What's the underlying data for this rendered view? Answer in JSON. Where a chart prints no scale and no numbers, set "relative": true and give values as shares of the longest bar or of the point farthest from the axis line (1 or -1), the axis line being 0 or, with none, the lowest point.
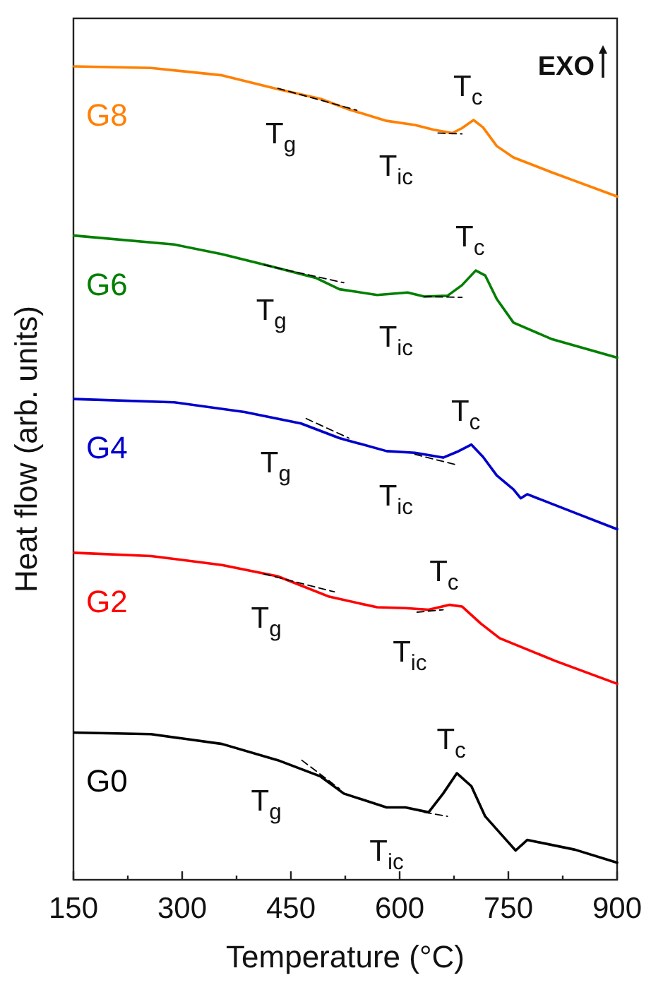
{
  "chart_data": {
    "type": "line",
    "relative": true,
    "xlabel": "Temperature (°C)",
    "ylabel": "Heat flow (arb. units)",
    "xlim": [
      150,
      900
    ],
    "xticks": [
      150,
      {
        "value": 225,
        "label": null
      },
      300,
      {
        "value": 375,
        "label": null
      },
      450,
      {
        "value": 525,
        "label": null
      },
      600,
      {
        "value": 675,
        "label": null
      },
      750,
      {
        "value": 825,
        "label": null
      },
      900
    ],
    "series": [
      {
        "name": "G8",
        "color": "#ff8000",
        "x": [
          151,
          257,
          355,
          432,
          491,
          530,
          582,
          621,
          647,
          673,
          686,
          702,
          715,
          734,
          757,
          809,
          900
        ],
        "values": [
          1.0,
          0.998,
          0.989,
          0.972,
          0.96,
          0.947,
          0.933,
          0.928,
          0.922,
          0.918,
          0.924,
          0.934,
          0.925,
          0.902,
          0.888,
          0.87,
          0.84
        ]
      },
      {
        "name": "G6",
        "color": "#007f00",
        "x": [
          151,
          289,
          355,
          419,
          484,
          517,
          569,
          611,
          634,
          666,
          686,
          705,
          718,
          734,
          757,
          809,
          900
        ],
        "values": [
          0.792,
          0.781,
          0.769,
          0.755,
          0.74,
          0.726,
          0.719,
          0.722,
          0.717,
          0.718,
          0.731,
          0.749,
          0.743,
          0.714,
          0.685,
          0.665,
          0.642
        ]
      },
      {
        "name": "G4",
        "color": "#0000cc",
        "x": [
          151,
          289,
          386,
          464,
          517,
          582,
          621,
          660,
          679,
          699,
          715,
          734,
          757,
          767,
          776,
          842,
          900
        ],
        "values": [
          0.591,
          0.587,
          0.575,
          0.561,
          0.543,
          0.527,
          0.525,
          0.519,
          0.526,
          0.535,
          0.52,
          0.497,
          0.48,
          0.469,
          0.474,
          0.451,
          0.431
        ]
      },
      {
        "name": "G2",
        "color": "#ff0000",
        "x": [
          151,
          257,
          355,
          432,
          503,
          569,
          608,
          640,
          669,
          686,
          712,
          738,
          815,
          900
        ],
        "values": [
          0.402,
          0.398,
          0.387,
          0.373,
          0.348,
          0.335,
          0.334,
          0.332,
          0.338,
          0.336,
          0.315,
          0.297,
          0.269,
          0.241
        ]
      },
      {
        "name": "G0",
        "color": "#000000",
        "x": [
          151,
          257,
          355,
          432,
          491,
          523,
          582,
          608,
          640,
          660,
          679,
          699,
          718,
          744,
          760,
          776,
          842,
          900
        ],
        "values": [
          0.181,
          0.179,
          0.167,
          0.147,
          0.127,
          0.106,
          0.089,
          0.089,
          0.083,
          0.106,
          0.131,
          0.115,
          0.078,
          0.052,
          0.036,
          0.049,
          0.037,
          0.021
        ]
      },
      {
        "color": "#000000",
        "line_style": "dashed",
        "x": [
          432,
          541
        ],
        "values": [
          0.973,
          0.946
        ]
      },
      {
        "color": "#000000",
        "line_style": "dashed",
        "x": [
          653,
          686
        ],
        "values": [
          0.918,
          0.917
        ]
      },
      {
        "color": "#000000",
        "line_style": "dashed",
        "x": [
          413,
          523
        ],
        "values": [
          0.756,
          0.734
        ]
      },
      {
        "color": "#000000",
        "line_style": "dashed",
        "x": [
          634,
          686
        ],
        "values": [
          0.717,
          0.716
        ]
      },
      {
        "color": "#000000",
        "line_style": "dashed",
        "x": [
          471,
          530
        ],
        "values": [
          0.567,
          0.543
        ]
      },
      {
        "color": "#000000",
        "line_style": "dashed",
        "x": [
          621,
          679
        ],
        "values": [
          0.523,
          0.51
        ]
      },
      {
        "color": "#000000",
        "line_style": "dashed",
        "x": [
          413,
          510
        ],
        "values": [
          0.376,
          0.354
        ]
      },
      {
        "color": "#000000",
        "line_style": "dashed",
        "x": [
          624,
          660
        ],
        "values": [
          0.329,
          0.332
        ]
      },
      {
        "color": "#000000",
        "line_style": "dashed",
        "x": [
          465,
          517
        ],
        "values": [
          0.147,
          0.112
        ]
      },
      {
        "color": "#000000",
        "line_style": "dashed",
        "x": [
          634,
          666
        ],
        "values": [
          0.083,
          0.078
        ]
      }
    ],
    "annotations": [
      "EXO",
      {
        "text": "T$_{g}$",
        "x": 436,
        "y": 0.971
      },
      {
        "text": "T$_{ic}$",
        "x": 595,
        "y": 0.931
      },
      {
        "text": "T$_{c}$",
        "x": 702,
        "y": 0.934
      },
      {
        "text": "T$_{g}$",
        "x": 423,
        "y": 0.754
      },
      {
        "text": "T$_{ic}$",
        "x": 595,
        "y": 0.721
      },
      {
        "text": "T$_{c}$",
        "x": 705,
        "y": 0.749
      },
      {
        "text": "T$_{g}$",
        "x": 429,
        "y": 0.567
      },
      {
        "text": "T$_{ic}$",
        "x": 595,
        "y": 0.526
      },
      {
        "text": "T$_{c}$",
        "x": 699,
        "y": 0.535
      },
      {
        "text": "T$_{g}$",
        "x": 416,
        "y": 0.376
      },
      {
        "text": "T$_{ic}$",
        "x": 614,
        "y": 0.334
      },
      {
        "text": "T$_{c}$",
        "x": 669,
        "y": 0.338
      },
      {
        "text": "T$_{g}$",
        "x": 416,
        "y": 0.151
      },
      {
        "text": "T$_{ic}$",
        "x": 582,
        "y": 0.089
      },
      {
        "text": "T$_{c}$",
        "x": 679,
        "y": 0.131
      }
    ]
  }
}
